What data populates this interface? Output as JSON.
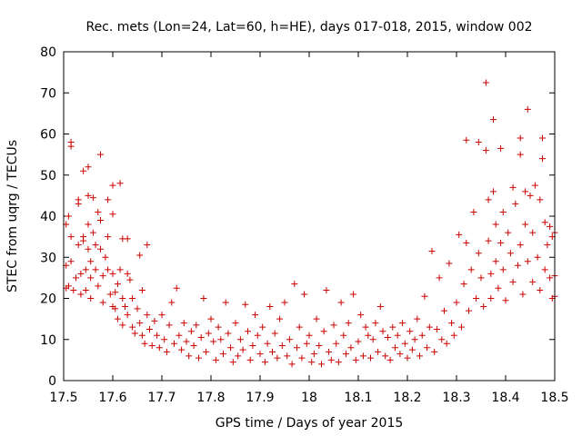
{
  "chart_data": {
    "type": "scatter",
    "title": "Rec. mets (Lon=24, Lat=60, h=HE), days 017-018, 2015, window 002",
    "xlabel": "GPS time / Days of year 2015",
    "ylabel": "STEC from uqrg / TECUs",
    "xlim": [
      17.5,
      18.5
    ],
    "ylim": [
      0,
      80
    ],
    "xticks": [
      "17.5",
      "17.6",
      "17.7",
      "17.8",
      "17.9",
      "18",
      "18.1",
      "18.2",
      "18.3",
      "18.4",
      "18.5"
    ],
    "yticks": [
      "0",
      "10",
      "20",
      "30",
      "40",
      "50",
      "60",
      "70",
      "80"
    ],
    "grid": false,
    "marker": "plus",
    "color": "#cc0000",
    "series": [
      {
        "points": [
          [
            17.505,
            22.5
          ],
          [
            17.505,
            28
          ],
          [
            17.505,
            38
          ],
          [
            17.51,
            40
          ],
          [
            17.51,
            23
          ],
          [
            17.515,
            57
          ],
          [
            17.515,
            58
          ],
          [
            17.515,
            35
          ],
          [
            17.515,
            29
          ],
          [
            17.52,
            22
          ],
          [
            17.525,
            25
          ],
          [
            17.53,
            44
          ],
          [
            17.53,
            43
          ],
          [
            17.53,
            33
          ],
          [
            17.535,
            26
          ],
          [
            17.535,
            21
          ],
          [
            17.54,
            51
          ],
          [
            17.54,
            35
          ],
          [
            17.54,
            34
          ],
          [
            17.545,
            27
          ],
          [
            17.545,
            22
          ],
          [
            17.55,
            52
          ],
          [
            17.55,
            45
          ],
          [
            17.55,
            38
          ],
          [
            17.55,
            32
          ],
          [
            17.555,
            29
          ],
          [
            17.555,
            25
          ],
          [
            17.555,
            20
          ],
          [
            17.56,
            44.5
          ],
          [
            17.56,
            36
          ],
          [
            17.565,
            33
          ],
          [
            17.565,
            27
          ],
          [
            17.57,
            41
          ],
          [
            17.57,
            23
          ],
          [
            17.575,
            55
          ],
          [
            17.575,
            39
          ],
          [
            17.575,
            32
          ],
          [
            17.58,
            25.5
          ],
          [
            17.58,
            19
          ],
          [
            17.585,
            30
          ],
          [
            17.59,
            44
          ],
          [
            17.59,
            35
          ],
          [
            17.59,
            27
          ],
          [
            17.595,
            21
          ],
          [
            17.6,
            47.5
          ],
          [
            17.6,
            40.5
          ],
          [
            17.6,
            26
          ],
          [
            17.6,
            18
          ],
          [
            17.605,
            21.5
          ],
          [
            17.605,
            17.5
          ],
          [
            17.61,
            23.5
          ],
          [
            17.61,
            15
          ],
          [
            17.615,
            48
          ],
          [
            17.615,
            27
          ],
          [
            17.62,
            34.5
          ],
          [
            17.62,
            20
          ],
          [
            17.62,
            13.5
          ],
          [
            17.625,
            18
          ],
          [
            17.63,
            34.5
          ],
          [
            17.63,
            26
          ],
          [
            17.63,
            16
          ],
          [
            17.635,
            24.5
          ],
          [
            17.64,
            20
          ],
          [
            17.64,
            13
          ],
          [
            17.645,
            11.5
          ],
          [
            17.65,
            17.5
          ],
          [
            17.655,
            30.5
          ],
          [
            17.655,
            14
          ],
          [
            17.66,
            22
          ],
          [
            17.66,
            11
          ],
          [
            17.665,
            9
          ],
          [
            17.67,
            33
          ],
          [
            17.67,
            16
          ],
          [
            17.675,
            12.5
          ],
          [
            17.68,
            8.5
          ],
          [
            17.685,
            14.5
          ],
          [
            17.69,
            11
          ],
          [
            17.695,
            8
          ],
          [
            17.7,
            16
          ],
          [
            17.705,
            10
          ],
          [
            17.71,
            7
          ],
          [
            17.715,
            13.5
          ],
          [
            17.72,
            19
          ],
          [
            17.725,
            9
          ],
          [
            17.73,
            22.5
          ],
          [
            17.735,
            11
          ],
          [
            17.74,
            7.5
          ],
          [
            17.745,
            14
          ],
          [
            17.75,
            9.5
          ],
          [
            17.755,
            6
          ],
          [
            17.76,
            12
          ],
          [
            17.765,
            8.5
          ],
          [
            17.77,
            13.5
          ],
          [
            17.775,
            5.5
          ],
          [
            17.78,
            10.5
          ],
          [
            17.785,
            20
          ],
          [
            17.79,
            7
          ],
          [
            17.795,
            11.5
          ],
          [
            17.8,
            15
          ],
          [
            17.805,
            9.5
          ],
          [
            17.81,
            5
          ],
          [
            17.815,
            13
          ],
          [
            17.82,
            10
          ],
          [
            17.825,
            6.5
          ],
          [
            17.83,
            19
          ],
          [
            17.835,
            11.5
          ],
          [
            17.84,
            8
          ],
          [
            17.845,
            4.5
          ],
          [
            17.85,
            14
          ],
          [
            17.855,
            6
          ],
          [
            17.86,
            10
          ],
          [
            17.865,
            7.5
          ],
          [
            17.87,
            18.5
          ],
          [
            17.875,
            12
          ],
          [
            17.88,
            5
          ],
          [
            17.885,
            8.5
          ],
          [
            17.89,
            16
          ],
          [
            17.895,
            11
          ],
          [
            17.9,
            6.5
          ],
          [
            17.905,
            13
          ],
          [
            17.91,
            4.5
          ],
          [
            17.915,
            9
          ],
          [
            17.92,
            18
          ],
          [
            17.925,
            7
          ],
          [
            17.93,
            11.5
          ],
          [
            17.935,
            5.5
          ],
          [
            17.94,
            15
          ],
          [
            17.945,
            8.5
          ],
          [
            17.95,
            19
          ],
          [
            17.955,
            6
          ],
          [
            17.96,
            10
          ],
          [
            17.965,
            4
          ],
          [
            17.97,
            23.5
          ],
          [
            17.975,
            8
          ],
          [
            17.98,
            13
          ],
          [
            17.985,
            5.5
          ],
          [
            17.99,
            21
          ],
          [
            17.995,
            9
          ],
          [
            18.0,
            11
          ],
          [
            18.005,
            4.5
          ],
          [
            18.01,
            6.5
          ],
          [
            18.015,
            15
          ],
          [
            18.02,
            8.5
          ],
          [
            18.025,
            4
          ],
          [
            18.03,
            12
          ],
          [
            18.035,
            22
          ],
          [
            18.04,
            7
          ],
          [
            18.045,
            5
          ],
          [
            18.05,
            13.5
          ],
          [
            18.055,
            9
          ],
          [
            18.06,
            4.5
          ],
          [
            18.065,
            19
          ],
          [
            18.07,
            11
          ],
          [
            18.075,
            6.5
          ],
          [
            18.08,
            14
          ],
          [
            18.085,
            8
          ],
          [
            18.09,
            21
          ],
          [
            18.095,
            5
          ],
          [
            18.1,
            9.5
          ],
          [
            18.105,
            16
          ],
          [
            18.11,
            6
          ],
          [
            18.115,
            13
          ],
          [
            18.12,
            11
          ],
          [
            18.125,
            5.5
          ],
          [
            18.13,
            10
          ],
          [
            18.135,
            14
          ],
          [
            18.14,
            7
          ],
          [
            18.145,
            18
          ],
          [
            18.15,
            12
          ],
          [
            18.155,
            6
          ],
          [
            18.16,
            10.5
          ],
          [
            18.165,
            5
          ],
          [
            18.17,
            13
          ],
          [
            18.175,
            8
          ],
          [
            18.18,
            11
          ],
          [
            18.185,
            6.5
          ],
          [
            18.19,
            14
          ],
          [
            18.195,
            9
          ],
          [
            18.2,
            5.5
          ],
          [
            18.205,
            12
          ],
          [
            18.21,
            7.5
          ],
          [
            18.215,
            10
          ],
          [
            18.22,
            15
          ],
          [
            18.225,
            6
          ],
          [
            18.23,
            11
          ],
          [
            18.235,
            20.5
          ],
          [
            18.24,
            8
          ],
          [
            18.245,
            13
          ],
          [
            18.25,
            31.5
          ],
          [
            18.255,
            7
          ],
          [
            18.26,
            12.5
          ],
          [
            18.265,
            25
          ],
          [
            18.27,
            10
          ],
          [
            18.275,
            17
          ],
          [
            18.28,
            9
          ],
          [
            18.285,
            28.5
          ],
          [
            18.29,
            14
          ],
          [
            18.295,
            11
          ],
          [
            18.3,
            19
          ],
          [
            18.305,
            35.5
          ],
          [
            18.31,
            13
          ],
          [
            18.315,
            23.5
          ],
          [
            18.32,
            58.5
          ],
          [
            18.32,
            33.5
          ],
          [
            18.325,
            17
          ],
          [
            18.33,
            27
          ],
          [
            18.335,
            41
          ],
          [
            18.34,
            20
          ],
          [
            18.345,
            58
          ],
          [
            18.345,
            31
          ],
          [
            18.35,
            25
          ],
          [
            18.355,
            18
          ],
          [
            18.36,
            72.5
          ],
          [
            18.36,
            56
          ],
          [
            18.365,
            44
          ],
          [
            18.365,
            34
          ],
          [
            18.37,
            26
          ],
          [
            18.37,
            20
          ],
          [
            18.375,
            63.5
          ],
          [
            18.375,
            46
          ],
          [
            18.38,
            38
          ],
          [
            18.38,
            29
          ],
          [
            18.385,
            22.5
          ],
          [
            18.39,
            56.5
          ],
          [
            18.39,
            33.5
          ],
          [
            18.395,
            41
          ],
          [
            18.395,
            27
          ],
          [
            18.4,
            19.5
          ],
          [
            18.405,
            36
          ],
          [
            18.41,
            31
          ],
          [
            18.415,
            47
          ],
          [
            18.415,
            24
          ],
          [
            18.42,
            43
          ],
          [
            18.425,
            28
          ],
          [
            18.43,
            59
          ],
          [
            18.43,
            55
          ],
          [
            18.43,
            33
          ],
          [
            18.435,
            21
          ],
          [
            18.44,
            46
          ],
          [
            18.44,
            38
          ],
          [
            18.445,
            66
          ],
          [
            18.445,
            29
          ],
          [
            18.45,
            45
          ],
          [
            18.455,
            36
          ],
          [
            18.455,
            24
          ],
          [
            18.46,
            47.5
          ],
          [
            18.465,
            30
          ],
          [
            18.47,
            44
          ],
          [
            18.47,
            22
          ],
          [
            18.475,
            59
          ],
          [
            18.475,
            54
          ],
          [
            18.48,
            38.5
          ],
          [
            18.48,
            27
          ],
          [
            18.485,
            33
          ],
          [
            18.49,
            37.5
          ],
          [
            18.49,
            25
          ],
          [
            18.495,
            35
          ],
          [
            18.495,
            20
          ],
          [
            18.5,
            20.5
          ],
          [
            18.5,
            25.5
          ],
          [
            18.5,
            36
          ]
        ]
      }
    ]
  }
}
